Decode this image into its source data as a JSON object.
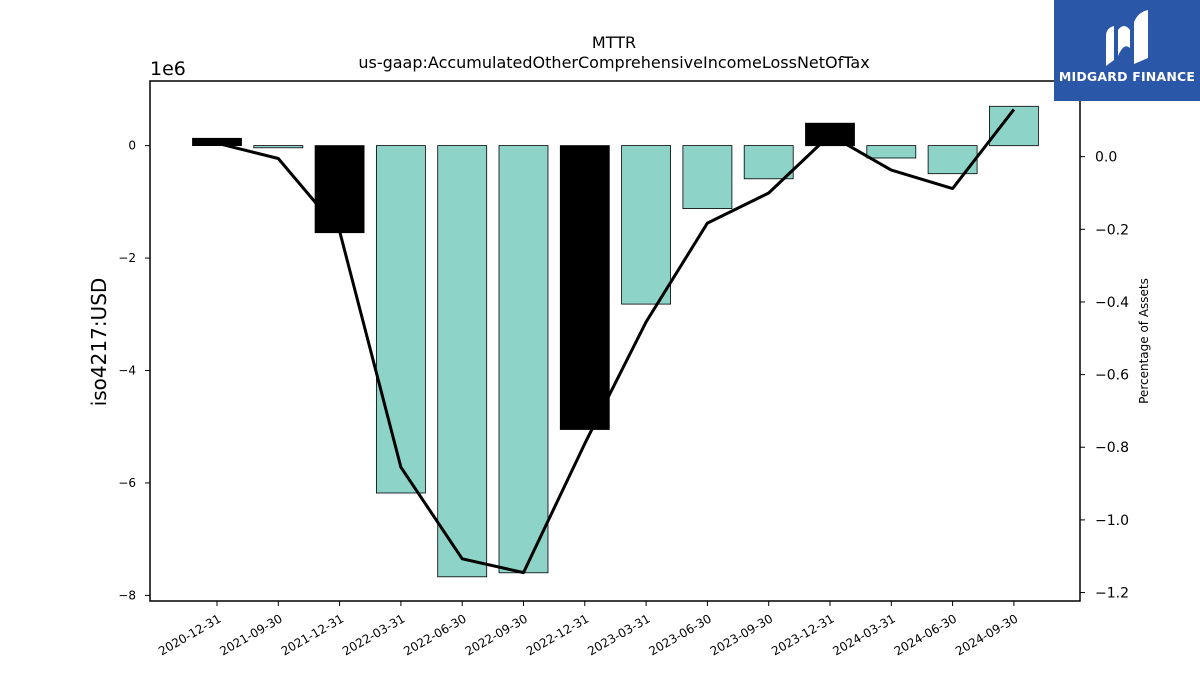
{
  "chart_data": {
    "type": "bar",
    "title": "MTTR",
    "subtitle": "us-gaap:AccumulatedOtherComprehensiveIncomeLossNetOfTax",
    "ylabel": "iso4217:USD",
    "y2label": "Percentage of Assets",
    "y_multiplier_label": "1e6",
    "categories": [
      "2020-12-31",
      "2021-09-30",
      "2021-12-31",
      "2022-03-31",
      "2022-06-30",
      "2022-09-30",
      "2022-12-31",
      "2023-03-31",
      "2023-06-30",
      "2023-09-30",
      "2023-12-31",
      "2024-03-31",
      "2024-06-30",
      "2024-09-30"
    ],
    "series": [
      {
        "type": "bar",
        "axis": "left",
        "units": "millions USD",
        "values": [
          0.13,
          -0.04,
          -1.55,
          -6.18,
          -7.67,
          -7.6,
          -5.05,
          -2.82,
          -1.12,
          -0.59,
          0.4,
          -0.22,
          -0.5,
          0.7
        ],
        "bar_colors": [
          "#000000",
          "#8dd3c7",
          "#000000",
          "#8dd3c7",
          "#8dd3c7",
          "#8dd3c7",
          "#000000",
          "#8dd3c7",
          "#8dd3c7",
          "#8dd3c7",
          "#000000",
          "#8dd3c7",
          "#8dd3c7",
          "#8dd3c7"
        ]
      },
      {
        "type": "line",
        "axis": "right",
        "values": [
          0.037,
          -0.005,
          -0.205,
          -0.855,
          -1.107,
          -1.145,
          -0.79,
          -0.455,
          -0.183,
          -0.1,
          0.06,
          -0.037,
          -0.088,
          0.13
        ]
      }
    ],
    "ylim": [
      -8.1,
      1.15
    ],
    "y2lim": [
      -1.2233,
      0.2083
    ],
    "yticks": [
      "0",
      "−2",
      "−4",
      "−6",
      "−8"
    ],
    "y2ticks": [
      "0.0",
      "−0.2",
      "−0.4",
      "−0.6",
      "−0.8",
      "−1.0",
      "−1.2"
    ],
    "grid": false,
    "legend": "none"
  },
  "logo": {
    "text": "MIDGARD FINANCE",
    "color": "#2a57a8"
  }
}
